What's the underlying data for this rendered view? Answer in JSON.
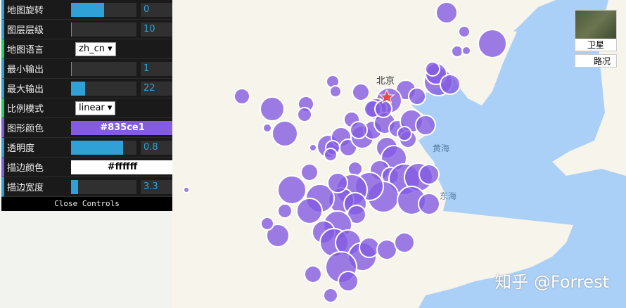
{
  "controls": [
    {
      "label": "地图旋转",
      "type": "slider",
      "value": "0",
      "fraction": 0.5
    },
    {
      "label": "图层层级",
      "type": "slider",
      "value": "10",
      "fraction": 0.01
    },
    {
      "label": "地图语言",
      "type": "select",
      "value": "zh_cn ▾"
    },
    {
      "label": "最小输出",
      "type": "slider",
      "value": "1",
      "fraction": 0
    },
    {
      "label": "最大输出",
      "type": "slider",
      "value": "22",
      "fraction": 0.22
    },
    {
      "label": "比例模式",
      "type": "select",
      "value": "linear ▾"
    },
    {
      "label": "图形颜色",
      "type": "color",
      "value": "#835ce1"
    },
    {
      "label": "透明度",
      "type": "slider",
      "value": "0.8",
      "fraction": 0.8
    },
    {
      "label": "描边颜色",
      "type": "color",
      "value": "#ffffff"
    },
    {
      "label": "描边宽度",
      "type": "slider",
      "value": "3.3",
      "fraction": 0.11
    }
  ],
  "close_label": "Close Controls",
  "map": {
    "city": "北京",
    "seas": [
      "黄海",
      "东海"
    ],
    "satellite_label": "卫星",
    "traffic_label": "路况",
    "watermark": "知乎 @Forrest"
  },
  "colors": {
    "bubble": "#835ce1",
    "stroke": "#ffffff",
    "sea": "#aad0f7",
    "land": "#f7f4ec",
    "accent": "#2fa1d6"
  }
}
